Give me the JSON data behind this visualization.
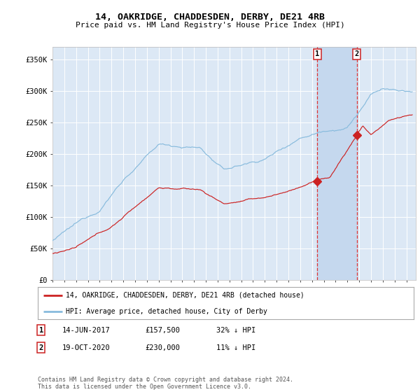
{
  "title1": "14, OAKRIDGE, CHADDESDEN, DERBY, DE21 4RB",
  "title2": "Price paid vs. HM Land Registry's House Price Index (HPI)",
  "ylim": [
    0,
    370000
  ],
  "xlim_start": 1995.0,
  "xlim_end": 2025.8,
  "background_color": "#ffffff",
  "plot_bg_color": "#dce8f5",
  "grid_color": "#ffffff",
  "hpi_color": "#88bbdd",
  "price_color": "#cc2222",
  "marker_color": "#cc2222",
  "sale1_date": 2017.45,
  "sale1_price": 157500,
  "sale2_date": 2020.8,
  "sale2_price": 230000,
  "highlight_color": "#c5d8ee",
  "vline_color": "#dd3333",
  "legend_label1": "14, OAKRIDGE, CHADDESDEN, DERBY, DE21 4RB (detached house)",
  "legend_label2": "HPI: Average price, detached house, City of Derby",
  "table_row1": [
    "1",
    "14-JUN-2017",
    "£157,500",
    "32% ↓ HPI"
  ],
  "table_row2": [
    "2",
    "19-OCT-2020",
    "£230,000",
    "11% ↓ HPI"
  ],
  "footnote": "Contains HM Land Registry data © Crown copyright and database right 2024.\nThis data is licensed under the Open Government Licence v3.0.",
  "yticks": [
    0,
    50000,
    100000,
    150000,
    200000,
    250000,
    300000,
    350000
  ],
  "ytick_labels": [
    "£0",
    "£50K",
    "£100K",
    "£150K",
    "£200K",
    "£250K",
    "£300K",
    "£350K"
  ]
}
